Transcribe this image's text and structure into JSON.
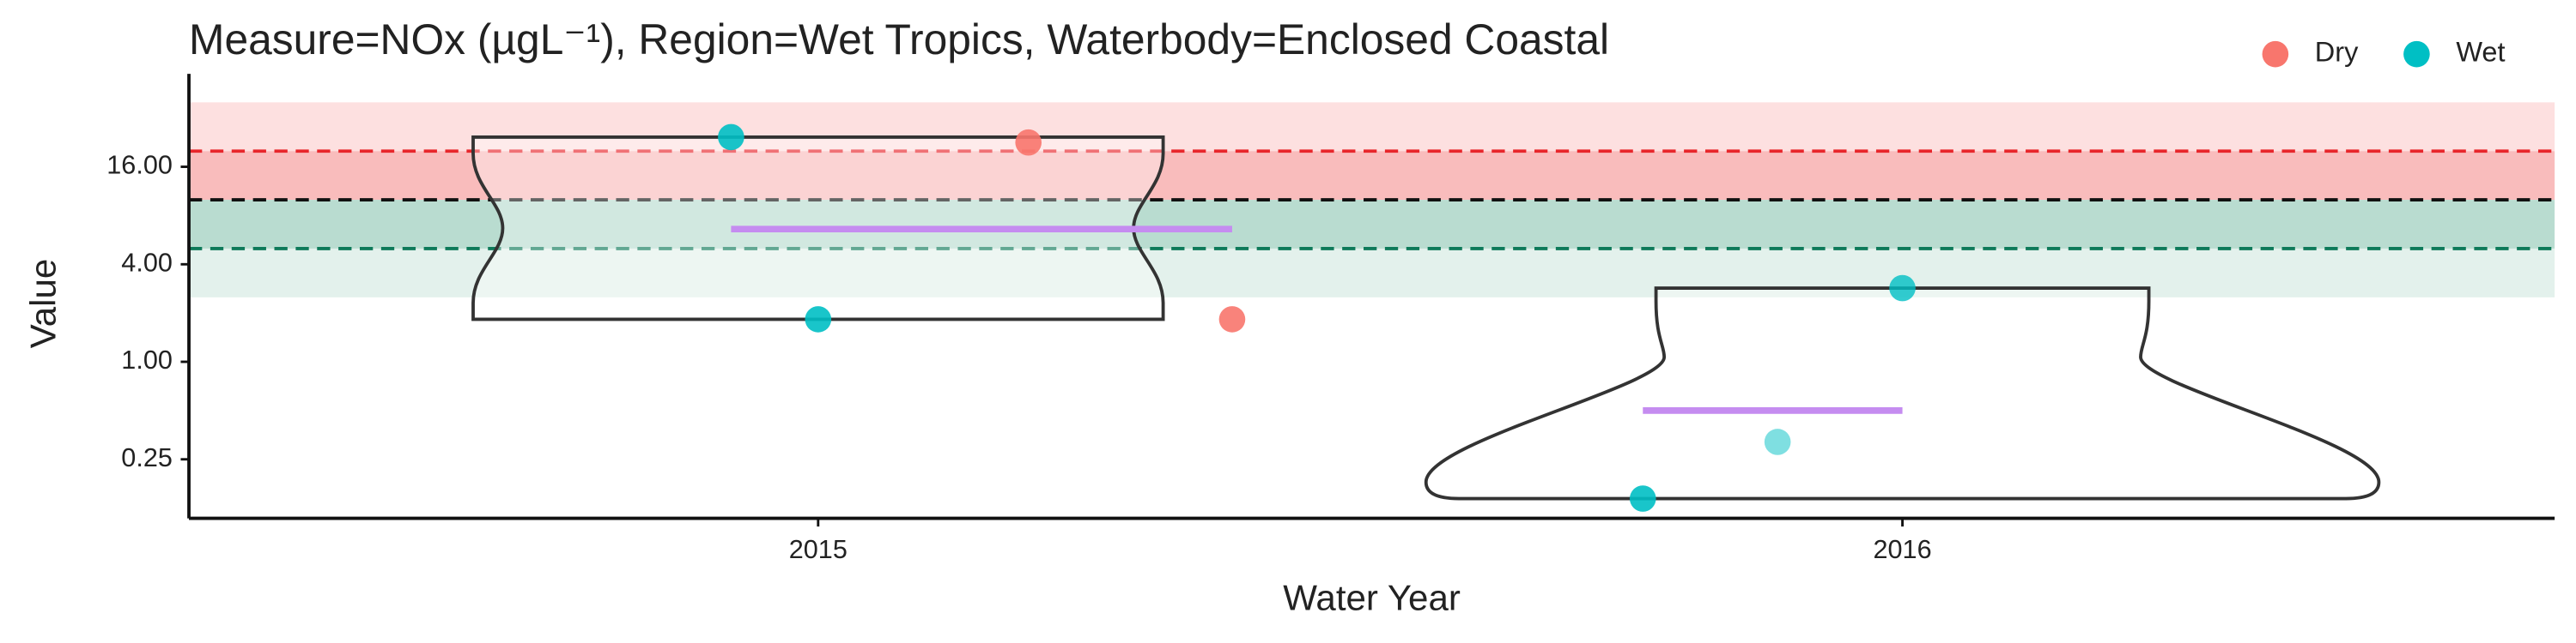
{
  "chart_data": {
    "type": "violin",
    "title": "Measure=NOx (µgL⁻¹), Region=Wet Tropics, Waterbody=Enclosed Coastal",
    "x_label": "Water Year",
    "y_label": "Value",
    "categories": [
      "2015",
      "2016"
    ],
    "log_scale": true,
    "ylim": [
      0.108,
      60
    ],
    "yticks": [
      {
        "value": 0.25,
        "label": "0.25"
      },
      {
        "value": 1,
        "label": "1.00"
      },
      {
        "value": 4,
        "label": "4.00"
      },
      {
        "value": 16,
        "label": "16.00"
      }
    ],
    "bands": [
      {
        "from": 20,
        "to": 40,
        "color": "#fde0e0"
      },
      {
        "from": 10,
        "to": 20,
        "color": "#f9bcbc"
      },
      {
        "from": 5,
        "to": 10,
        "color": "#b9dcd0"
      },
      {
        "from": 2.5,
        "to": 5,
        "color": "#e3f1ec"
      }
    ],
    "reference_lines": [
      {
        "value": 20,
        "color": "#e8262b"
      },
      {
        "value": 10,
        "color": "#111111"
      },
      {
        "value": 5,
        "color": "#0e7a5a"
      }
    ],
    "series": [
      {
        "name": "Dry",
        "color": "#f8766d",
        "x": [
          "2015",
          "2015"
        ],
        "values": [
          22.6,
          1.83
        ]
      },
      {
        "name": "Wet",
        "color": "#00bfc4",
        "x": [
          "2015",
          "2015",
          "2016",
          "2016",
          "2016"
        ],
        "values": [
          24.4,
          1.83,
          2.85,
          0.32,
          0.143
        ]
      }
    ],
    "medians": {
      "color": "#c58cf0",
      "values": [
        6.6,
        0.5
      ]
    }
  }
}
